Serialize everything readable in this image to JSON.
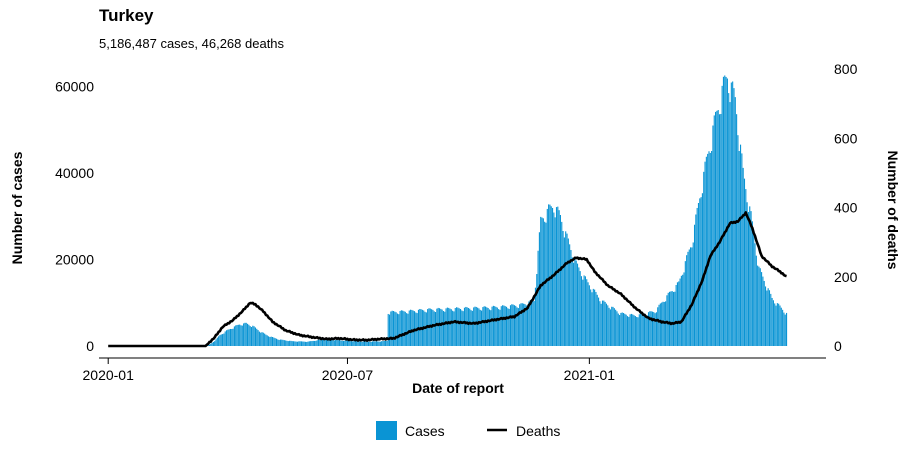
{
  "chart_data": {
    "type": "bar",
    "title": "Turkey",
    "subtitle": "5,186,487 cases, 46,268 deaths",
    "xlabel": "Date of report",
    "ylabel_left": "Number of cases",
    "ylabel_right": "Number of deaths",
    "x_ticks": [
      "2020-01",
      "2020-07",
      "2021-01"
    ],
    "x_tick_dates": [
      "2020-01-01",
      "2020-07-01",
      "2021-01-01"
    ],
    "xlim": [
      "2019-12-25",
      "2021-06-30"
    ],
    "y_left_ticks": [
      "0",
      "20000",
      "40000",
      "60000"
    ],
    "y_left_lim": [
      0,
      65000
    ],
    "y_right_ticks": [
      "0",
      "200",
      "400",
      "600",
      "800"
    ],
    "y_right_lim": [
      0,
      812
    ],
    "grid": false,
    "legend_position": "bottom",
    "legend": [
      {
        "name": "Cases",
        "kind": "bar",
        "color": "#0a94d4"
      },
      {
        "name": "Deaths",
        "kind": "line",
        "color": "#000000"
      }
    ],
    "series": [
      {
        "name": "Cases",
        "axis": "left",
        "color": "#0a94d4",
        "points": [
          [
            "2020-03-10",
            0
          ],
          [
            "2020-03-14",
            0
          ],
          [
            "2020-03-18",
            300
          ],
          [
            "2020-03-22",
            1200
          ],
          [
            "2020-03-26",
            2500
          ],
          [
            "2020-03-31",
            3500
          ],
          [
            "2020-04-05",
            4300
          ],
          [
            "2020-04-10",
            5000
          ],
          [
            "2020-04-15",
            5200
          ],
          [
            "2020-04-20",
            4600
          ],
          [
            "2020-04-25",
            3500
          ],
          [
            "2020-04-30",
            2600
          ],
          [
            "2020-05-05",
            2000
          ],
          [
            "2020-05-10",
            1500
          ],
          [
            "2020-05-20",
            1100
          ],
          [
            "2020-06-01",
            1000
          ],
          [
            "2020-06-12",
            1500
          ],
          [
            "2020-06-20",
            1400
          ],
          [
            "2020-07-01",
            1200
          ],
          [
            "2020-07-15",
            1000
          ],
          [
            "2020-07-28",
            1100
          ],
          [
            "2020-07-31",
            1200
          ],
          [
            "2020-08-01",
            7800
          ],
          [
            "2020-08-15",
            8000
          ],
          [
            "2020-09-01",
            8400
          ],
          [
            "2020-09-20",
            8600
          ],
          [
            "2020-10-10",
            8800
          ],
          [
            "2020-10-25",
            9000
          ],
          [
            "2020-11-10",
            9500
          ],
          [
            "2020-11-20",
            10500
          ],
          [
            "2020-11-25",
            29000
          ],
          [
            "2020-12-01",
            31500
          ],
          [
            "2020-12-05",
            32500
          ],
          [
            "2020-12-10",
            30000
          ],
          [
            "2020-12-15",
            25000
          ],
          [
            "2020-12-22",
            19000
          ],
          [
            "2020-12-30",
            15000
          ],
          [
            "2021-01-10",
            10500
          ],
          [
            "2021-01-25",
            7500
          ],
          [
            "2021-02-05",
            7000
          ],
          [
            "2021-02-20",
            8000
          ],
          [
            "2021-03-01",
            11500
          ],
          [
            "2021-03-10",
            14500
          ],
          [
            "2021-03-20",
            24000
          ],
          [
            "2021-03-28",
            38000
          ],
          [
            "2021-04-05",
            50000
          ],
          [
            "2021-04-12",
            59000
          ],
          [
            "2021-04-16",
            62500
          ],
          [
            "2021-04-22",
            57000
          ],
          [
            "2021-04-28",
            40000
          ],
          [
            "2021-05-04",
            30000
          ],
          [
            "2021-05-10",
            18000
          ],
          [
            "2021-05-20",
            11000
          ],
          [
            "2021-05-31",
            7500
          ]
        ]
      },
      {
        "name": "Deaths",
        "axis": "right",
        "color": "#000000",
        "points": [
          [
            "2020-01-01",
            0
          ],
          [
            "2020-03-15",
            0
          ],
          [
            "2020-03-22",
            25
          ],
          [
            "2020-03-28",
            55
          ],
          [
            "2020-04-05",
            75
          ],
          [
            "2020-04-12",
            100
          ],
          [
            "2020-04-18",
            125
          ],
          [
            "2020-04-22",
            120
          ],
          [
            "2020-04-28",
            100
          ],
          [
            "2020-05-05",
            70
          ],
          [
            "2020-05-15",
            45
          ],
          [
            "2020-05-25",
            32
          ],
          [
            "2020-06-05",
            25
          ],
          [
            "2020-06-15",
            20
          ],
          [
            "2020-06-25",
            22
          ],
          [
            "2020-07-05",
            18
          ],
          [
            "2020-07-15",
            17
          ],
          [
            "2020-07-25",
            20
          ],
          [
            "2020-08-05",
            22
          ],
          [
            "2020-08-20",
            45
          ],
          [
            "2020-09-05",
            60
          ],
          [
            "2020-09-20",
            70
          ],
          [
            "2020-10-05",
            65
          ],
          [
            "2020-10-20",
            75
          ],
          [
            "2020-11-05",
            85
          ],
          [
            "2020-11-15",
            110
          ],
          [
            "2020-11-25",
            175
          ],
          [
            "2020-12-05",
            205
          ],
          [
            "2020-12-15",
            240
          ],
          [
            "2020-12-22",
            255
          ],
          [
            "2020-12-30",
            250
          ],
          [
            "2021-01-05",
            215
          ],
          [
            "2021-01-15",
            175
          ],
          [
            "2021-01-25",
            150
          ],
          [
            "2021-02-05",
            110
          ],
          [
            "2021-02-15",
            80
          ],
          [
            "2021-02-25",
            70
          ],
          [
            "2021-03-05",
            65
          ],
          [
            "2021-03-12",
            70
          ],
          [
            "2021-03-20",
            120
          ],
          [
            "2021-03-28",
            190
          ],
          [
            "2021-04-03",
            260
          ],
          [
            "2021-04-10",
            300
          ],
          [
            "2021-04-18",
            355
          ],
          [
            "2021-04-24",
            360
          ],
          [
            "2021-04-30",
            385
          ],
          [
            "2021-05-05",
            340
          ],
          [
            "2021-05-12",
            260
          ],
          [
            "2021-05-20",
            230
          ],
          [
            "2021-05-26",
            215
          ],
          [
            "2021-05-31",
            200
          ]
        ]
      }
    ]
  }
}
